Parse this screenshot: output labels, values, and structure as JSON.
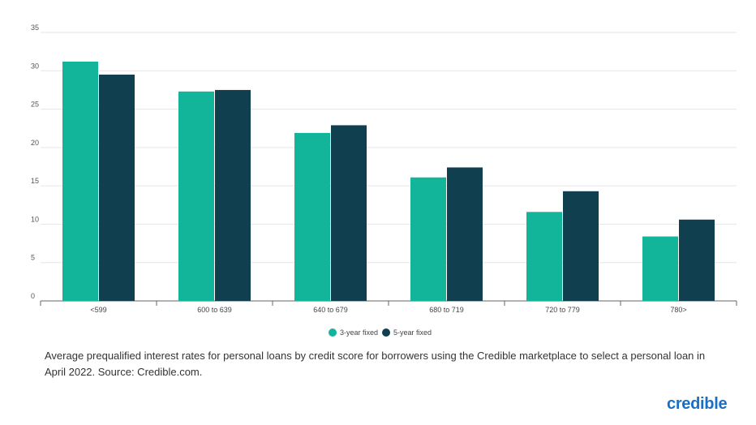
{
  "chart_data": {
    "type": "bar",
    "categories": [
      "<599",
      "600 to 639",
      "640 to 679",
      "680 to 719",
      "720 to 779",
      "780>"
    ],
    "series": [
      {
        "name": "3-year fixed",
        "values": [
          31.2,
          27.3,
          21.9,
          16.1,
          11.6,
          8.4
        ],
        "color": "#12b59a"
      },
      {
        "name": "5-year fixed",
        "values": [
          29.5,
          27.5,
          22.9,
          17.4,
          14.3,
          10.6
        ],
        "color": "#103f4f"
      }
    ],
    "ylim": [
      0,
      35
    ],
    "yticks": [
      0,
      5,
      10,
      15,
      20,
      25,
      30,
      35
    ],
    "title": "",
    "xlabel": "",
    "ylabel": "",
    "grid": true,
    "legend": "bottom-center"
  },
  "caption": "Average prequalified interest rates for personal loans by credit score for borrowers using the Credible marketplace to select a personal loan in April 2022. Source: Credible.com.",
  "brand": {
    "name": "credible",
    "color": "#1a6fc4"
  }
}
